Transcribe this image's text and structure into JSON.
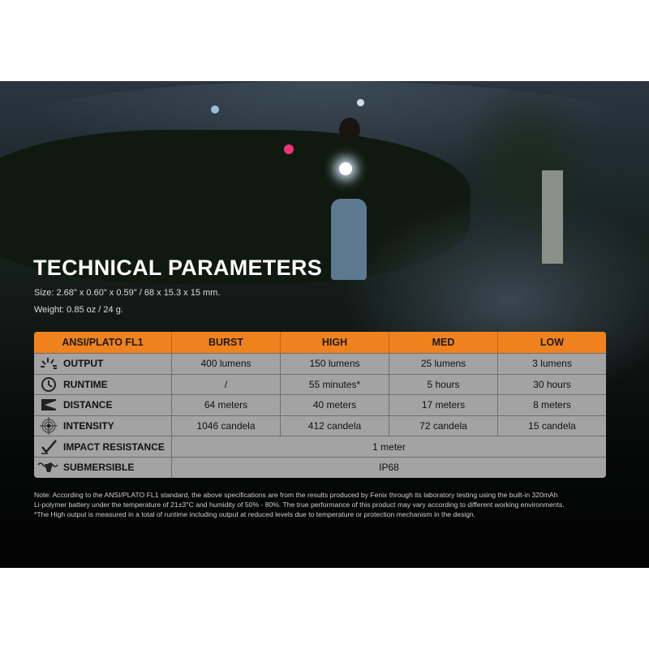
{
  "title": "TECHNICAL PARAMETERS",
  "size": "Size: 2.68\" x 0.60\" x 0.59\" / 68 x 15.3 x 15 mm.",
  "weight": "Weight: 0.85 oz / 24 g.",
  "accent": "#f0821e",
  "table": {
    "headers": [
      "ANSI/PLATO FL1",
      "BURST",
      "HIGH",
      "MED",
      "LOW"
    ],
    "rows": [
      {
        "icon": "light-burst-icon",
        "label": "OUTPUT",
        "values": [
          "400 lumens",
          "150 lumens",
          "25 lumens",
          "3 lumens"
        ]
      },
      {
        "icon": "clock-icon",
        "label": "RUNTIME",
        "values": [
          "/",
          "55 minutes*",
          "5 hours",
          "30 hours"
        ]
      },
      {
        "icon": "beam-distance-icon",
        "label": "DISTANCE",
        "values": [
          "64 meters",
          "40 meters",
          "17 meters",
          "8 meters"
        ]
      },
      {
        "icon": "crosshair-icon",
        "label": "INTENSITY",
        "values": [
          "1046 candela",
          "412 candela",
          "72 candela",
          "15 candela"
        ]
      },
      {
        "icon": "impact-icon",
        "label": "IMPACT RESISTANCE",
        "span": "1 meter"
      },
      {
        "icon": "submersible-icon",
        "label": "SUBMERSIBLE",
        "span": "IP68"
      }
    ]
  },
  "note": [
    "Note: According to the ANSI/PLATO FL1 standard, the above specifications are from the results produced by Fenix through its laboratory testing using the built-in 320mAh",
    "Li-polymer battery under the temperature of 21±3°C and humidity of 50% - 80%. The true performance of this product may vary according to different working environments.",
    "*The High output is measured in a total of runtime including output at reduced levels due to temperature or protection mechanism in the design."
  ]
}
